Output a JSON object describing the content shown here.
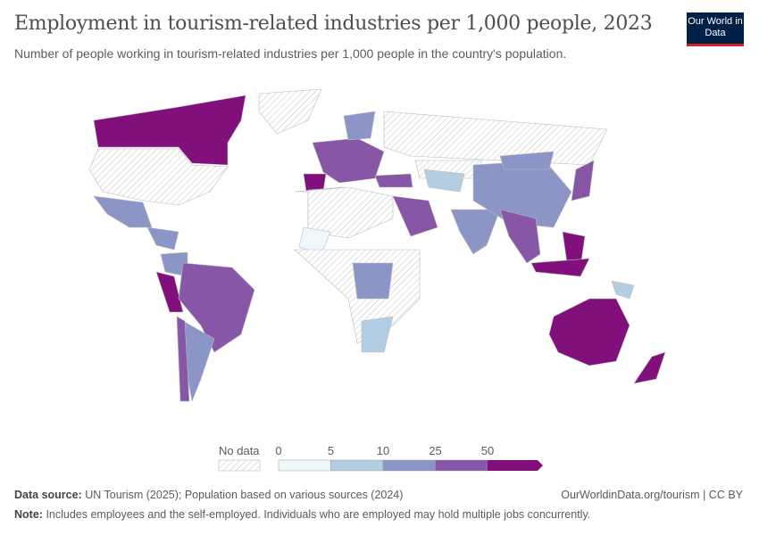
{
  "header": {
    "title": "Employment in tourism-related industries per 1,000 people, 2023",
    "subtitle": "Number of people working in tourism-related industries per 1,000 people in the country's population.",
    "logo": "Our World in Data"
  },
  "legend": {
    "no_data_label": "No data",
    "ticks": [
      "0",
      "5",
      "10",
      "25",
      "50"
    ],
    "colors": [
      "#edf8fb",
      "#b3cde3",
      "#8c96c6",
      "#8856a7",
      "#810f7c"
    ],
    "no_data_color": "#f2f2f2"
  },
  "map": {
    "regions": [
      {
        "name": "Canada",
        "bin": 4
      },
      {
        "name": "USA",
        "bin": -1
      },
      {
        "name": "Mexico",
        "bin": 2
      },
      {
        "name": "Central America",
        "bin": 2
      },
      {
        "name": "Colombia",
        "bin": 2
      },
      {
        "name": "Peru",
        "bin": 4
      },
      {
        "name": "Brazil",
        "bin": 3
      },
      {
        "name": "Argentina",
        "bin": 2
      },
      {
        "name": "Chile",
        "bin": 3
      },
      {
        "name": "Greenland",
        "bin": -1
      },
      {
        "name": "Western Europe",
        "bin": 3
      },
      {
        "name": "Spain",
        "bin": 4
      },
      {
        "name": "Scandinavia",
        "bin": 2
      },
      {
        "name": "Russia",
        "bin": -1
      },
      {
        "name": "Algeria",
        "bin": 1
      },
      {
        "name": "North Africa other",
        "bin": -1
      },
      {
        "name": "Mali",
        "bin": 0
      },
      {
        "name": "Central Africa",
        "bin": -1
      },
      {
        "name": "DR Congo",
        "bin": 2
      },
      {
        "name": "South Africa",
        "bin": 1
      },
      {
        "name": "Saudi Arabia",
        "bin": 3
      },
      {
        "name": "Turkey",
        "bin": 3
      },
      {
        "name": "Kazakhstan",
        "bin": -1
      },
      {
        "name": "Central Asia",
        "bin": 1
      },
      {
        "name": "India",
        "bin": 2
      },
      {
        "name": "China",
        "bin": 2
      },
      {
        "name": "Mongolia",
        "bin": 2
      },
      {
        "name": "Japan",
        "bin": 3
      },
      {
        "name": "Southeast Asia",
        "bin": 3
      },
      {
        "name": "Philippines",
        "bin": 4
      },
      {
        "name": "Indonesia",
        "bin": 4
      },
      {
        "name": "Papua New Guinea",
        "bin": 1
      },
      {
        "name": "Australia",
        "bin": 4
      },
      {
        "name": "New Zealand",
        "bin": 4
      }
    ]
  },
  "footer": {
    "source_label": "Data source:",
    "source": "UN Tourism (2025); Population based on various sources (2024)",
    "url": "OurWorldinData.org/tourism | CC BY",
    "note_label": "Note:",
    "note": "Includes employees and the self-employed. Individuals who are employed may hold multiple jobs concurrently."
  }
}
